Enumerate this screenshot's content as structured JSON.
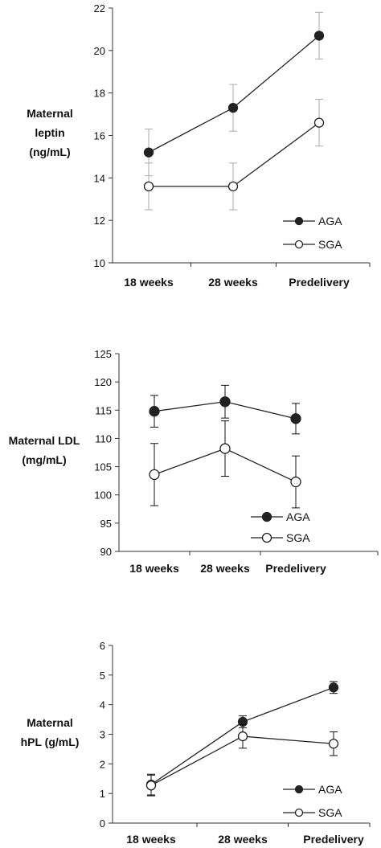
{
  "chart_data": [
    {
      "type": "line",
      "ylabel_lines": [
        "Maternal",
        "leptin",
        "(ng/mL)"
      ],
      "categories": [
        "18 weeks",
        "28 weeks",
        "Predelivery"
      ],
      "ylim": [
        10,
        22
      ],
      "yticks": [
        10,
        12,
        14,
        16,
        18,
        20,
        22
      ],
      "errorbar_color": "#aaaaaa",
      "legend": "bottom-right",
      "series": [
        {
          "name": "AGA",
          "marker": "filled",
          "values": [
            15.2,
            17.3,
            20.7
          ],
          "errors": [
            1.1,
            1.1,
            1.1
          ]
        },
        {
          "name": "SGA",
          "marker": "open",
          "values": [
            13.6,
            13.6,
            16.6
          ],
          "errors": [
            1.1,
            1.1,
            1.1
          ]
        }
      ]
    },
    {
      "type": "line",
      "ylabel_lines": [
        "Maternal LDL",
        "(mg/mL)"
      ],
      "categories": [
        "18 weeks",
        "28 weeks",
        "Predelivery"
      ],
      "ylim": [
        90,
        125
      ],
      "yticks": [
        90,
        95,
        100,
        105,
        110,
        115,
        120,
        125
      ],
      "errorbar_color": "#111111",
      "legend": "bottom-right",
      "series": [
        {
          "name": "AGA",
          "marker": "filled",
          "values": [
            114.8,
            116.5,
            113.5
          ],
          "errors": [
            2.8,
            2.9,
            2.7
          ]
        },
        {
          "name": "SGA",
          "marker": "open",
          "values": [
            103.6,
            108.2,
            102.3
          ],
          "errors": [
            5.5,
            4.9,
            4.6
          ]
        }
      ]
    },
    {
      "type": "line",
      "ylabel_lines": [
        "Maternal",
        "hPL (g/mL)"
      ],
      "categories": [
        "18 weeks",
        "28 weeks",
        "Predelivery"
      ],
      "ylim": [
        0,
        6
      ],
      "yticks": [
        0,
        1,
        2,
        3,
        4,
        5,
        6
      ],
      "errorbar_color": "#111111",
      "legend": "bottom-right",
      "series": [
        {
          "name": "AGA",
          "marker": "filled",
          "values": [
            1.3,
            3.42,
            4.58
          ],
          "errors": [
            0.35,
            0.2,
            0.2
          ]
        },
        {
          "name": "SGA",
          "marker": "open",
          "values": [
            1.27,
            2.93,
            2.68
          ],
          "errors": [
            0.35,
            0.4,
            0.4
          ]
        }
      ]
    }
  ]
}
